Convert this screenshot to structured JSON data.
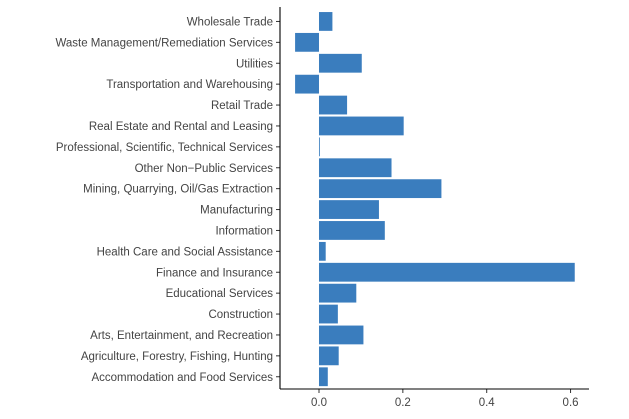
{
  "chart_data": {
    "type": "bar",
    "orientation": "horizontal",
    "title": "",
    "xlabel": "",
    "ylabel": "",
    "categories": [
      "Wholesale Trade",
      "Waste Management/Remediation Services",
      "Utilities",
      "Transportation and Warehousing",
      "Retail Trade",
      "Real Estate and Rental and Leasing",
      "Professional, Scientific, Technical Services",
      "Other Non−Public Services",
      "Mining, Quarrying, Oil/Gas Extraction",
      "Manufacturing",
      "Information",
      "Health Care and Social Assistance",
      "Finance and Insurance",
      "Educational Services",
      "Construction",
      "Arts, Entertainment, and Recreation",
      "Agriculture, Forestry, Fishing, Hunting",
      "Accommodation and Food Services"
    ],
    "values": [
      0.032,
      -0.057,
      0.102,
      -0.057,
      0.067,
      0.202,
      0.002,
      0.173,
      0.292,
      0.143,
      0.157,
      0.016,
      0.61,
      0.089,
      0.045,
      0.106,
      0.047,
      0.021
    ],
    "xlim": [
      -0.093,
      0.644
    ],
    "xticks": [
      0.0,
      0.2,
      0.4,
      0.6
    ],
    "xtick_labels": [
      "0.0",
      "0.2",
      "0.4",
      "0.6"
    ],
    "bar_color": "#3A7DBE",
    "grid": false,
    "legend": "none"
  }
}
